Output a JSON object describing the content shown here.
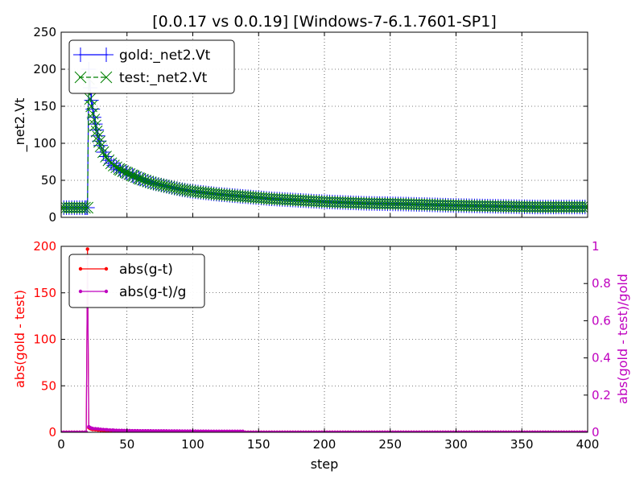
{
  "figure_title": "[0.0.17 vs 0.0.19] [Windows-7-6.1.7601-SP1]",
  "colors": {
    "gold": "#0000ff",
    "test": "#008000",
    "abs": "#ff0000",
    "rel": "#bf00bf",
    "axis": "#000000",
    "grid": "#000000"
  },
  "chart_data": [
    {
      "type": "line",
      "title": "[0.0.17 vs 0.0.19] [Windows-7-6.1.7601-SP1]",
      "xlabel": "",
      "ylabel": "_net2.Vt",
      "xlim": [
        0,
        400
      ],
      "ylim": [
        0,
        250
      ],
      "grid": true,
      "legend_position": "top-left",
      "yticks": [
        "0",
        "50",
        "100",
        "150",
        "200",
        "250"
      ],
      "series": [
        {
          "name": "gold:_net2.Vt",
          "color": "#0000ff",
          "marker": "plus",
          "x": [
            0,
            19,
            20,
            21,
            22,
            23,
            24,
            25,
            26,
            27,
            28,
            29,
            30,
            32,
            34,
            36,
            38,
            40,
            45,
            50,
            55,
            60,
            70,
            80,
            90,
            100,
            120,
            140,
            160,
            180,
            200,
            230,
            260,
            300,
            330,
            360,
            400
          ],
          "y": [
            13,
            13,
            13,
            200,
            175,
            158,
            146,
            135,
            126,
            118,
            110,
            103,
            97,
            88,
            82,
            77,
            73,
            70,
            64,
            60,
            56,
            52,
            46,
            42,
            38,
            35,
            31,
            28,
            25,
            23,
            21,
            19,
            18,
            16,
            15,
            14,
            14
          ]
        },
        {
          "name": "test:_net2.Vt",
          "color": "#008000",
          "marker": "x",
          "x": [
            0,
            20,
            21,
            22,
            23,
            24,
            25,
            26,
            27,
            28,
            29,
            30,
            32,
            34,
            36,
            38,
            40,
            45,
            50,
            55,
            60,
            70,
            80,
            90,
            100,
            120,
            140,
            160,
            180,
            200,
            230,
            260,
            300,
            330,
            360,
            400
          ],
          "y": [
            13,
            13,
            187,
            160,
            150,
            140,
            132,
            124,
            116,
            109,
            102,
            96,
            88,
            82,
            77,
            73,
            70,
            64,
            60,
            56,
            52,
            46,
            42,
            38,
            35,
            31,
            28,
            25,
            23,
            21,
            19,
            18,
            16,
            15,
            14,
            14
          ]
        }
      ]
    },
    {
      "type": "line",
      "title": "",
      "xlabel": "step",
      "ylabel": "abs(gold - test)",
      "ylabel_right": "abs(gold - test)/gold",
      "xlim": [
        0,
        400
      ],
      "ylim": [
        0,
        200
      ],
      "ylim_right": [
        0,
        1
      ],
      "grid": true,
      "legend_position": "top-left",
      "xticks": [
        "0",
        "50",
        "100",
        "150",
        "200",
        "250",
        "300",
        "350",
        "400"
      ],
      "yticks": [
        "0",
        "50",
        "100",
        "150",
        "200"
      ],
      "yticks_right": [
        "0",
        "0.2",
        "0.4",
        "0.6",
        "0.8",
        "1"
      ],
      "series": [
        {
          "name": "abs(g-t)",
          "color": "#ff0000",
          "marker": "dot",
          "axis": "left",
          "x": [
            0,
            19,
            20,
            21,
            22,
            23,
            24,
            26,
            28,
            30,
            35,
            40,
            50,
            60,
            80,
            100,
            120,
            138,
            140,
            200,
            300,
            400
          ],
          "y": [
            0,
            0,
            197,
            5,
            4,
            3.5,
            3,
            2.8,
            2.5,
            2.2,
            1.8,
            1.5,
            1.2,
            1.1,
            1.0,
            0.9,
            0.8,
            0.8,
            0,
            0,
            0,
            0
          ]
        },
        {
          "name": "abs(g-t)/g",
          "color": "#bf00bf",
          "marker": "dot",
          "axis": "right",
          "x": [
            0,
            19,
            20,
            21,
            22,
            23,
            24,
            26,
            28,
            30,
            35,
            40,
            50,
            60,
            80,
            100,
            120,
            138,
            140,
            200,
            300,
            400
          ],
          "y": [
            0,
            0,
            0.94,
            0.03,
            0.025,
            0.022,
            0.02,
            0.019,
            0.018,
            0.016,
            0.013,
            0.011,
            0.009,
            0.008,
            0.007,
            0.006,
            0.005,
            0.005,
            0,
            0,
            0,
            0
          ]
        }
      ]
    }
  ]
}
